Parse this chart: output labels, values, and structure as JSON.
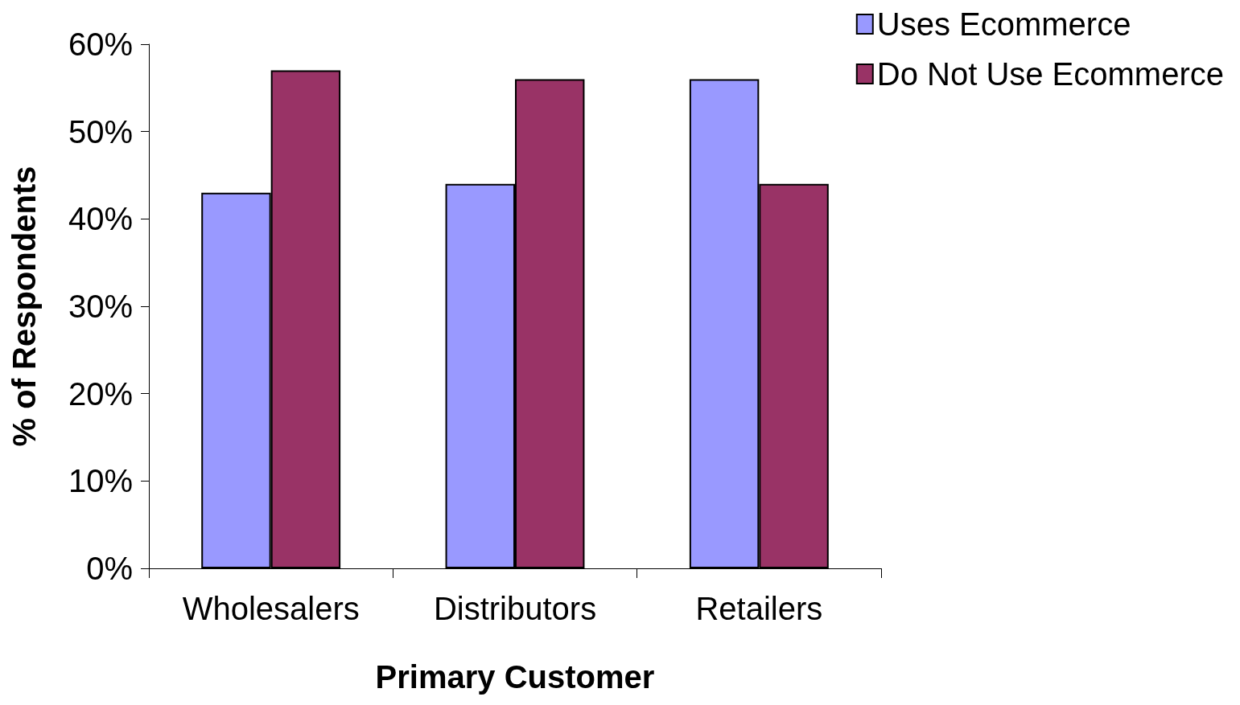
{
  "chart_data": {
    "type": "bar",
    "xlabel": "Primary Customer",
    "ylabel": "% of Respondents",
    "categories": [
      "Wholesalers",
      "Distributors",
      "Retailers"
    ],
    "series": [
      {
        "name": "Uses Ecommerce",
        "color": "#9999ff",
        "values": [
          43,
          44,
          56
        ]
      },
      {
        "name": "Do Not Use Ecommerce",
        "color": "#993366",
        "values": [
          57,
          56,
          44
        ]
      }
    ],
    "ylim": [
      0,
      60
    ],
    "yticks": [
      {
        "value": 0,
        "label": "0%"
      },
      {
        "value": 10,
        "label": "10%"
      },
      {
        "value": 20,
        "label": "20%"
      },
      {
        "value": 30,
        "label": "30%"
      },
      {
        "value": 40,
        "label": "40%"
      },
      {
        "value": 50,
        "label": "50%"
      },
      {
        "value": 60,
        "label": "60%"
      }
    ],
    "grid": false,
    "legend": "top right"
  }
}
